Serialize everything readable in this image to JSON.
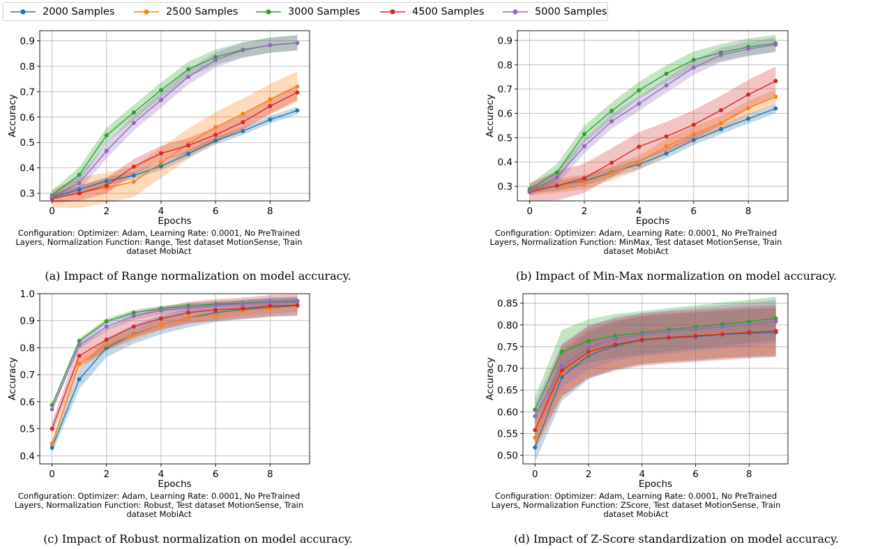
{
  "colors": {
    "2000 Samples": "#1f77b4",
    "2500 Samples": "#ff7f0e",
    "3000 Samples": "#2ca02c",
    "4500 Samples": "#d62728",
    "5000 Samples": "#9467bd"
  },
  "legend": [
    "2000 Samples",
    "2500 Samples",
    "3000 Samples",
    "4500 Samples",
    "5000 Samples"
  ],
  "chart_data": [
    {
      "type": "line",
      "xlabel": "Epochs",
      "ylabel": "Accuracy",
      "xlim": [
        -0.45,
        9.45
      ],
      "ylim": [
        0.27,
        0.94
      ],
      "xticks": [
        "0",
        "2",
        "4",
        "6",
        "8"
      ],
      "yticks": [
        "0.3",
        "0.4",
        "0.5",
        "0.6",
        "0.7",
        "0.8",
        "0.9"
      ],
      "grid": true,
      "config": "Configuration: Optimizer: Adam, Learning Rate: 0.0001, No PreTrained Layers, Normalization Function: Range, Test dataset MotionSense, Train dataset MobiAct",
      "caption": "(a) Impact of Range normalization on model accuracy.",
      "x": [
        0,
        1,
        2,
        3,
        4,
        5,
        6,
        7,
        8,
        9
      ],
      "series": [
        {
          "name": "2000 Samples",
          "values": [
            0.285,
            0.315,
            0.348,
            0.37,
            0.407,
            0.455,
            0.507,
            0.545,
            0.59,
            0.626
          ],
          "band": 0.015
        },
        {
          "name": "2500 Samples",
          "values": [
            0.28,
            0.302,
            0.322,
            0.345,
            0.42,
            0.495,
            0.56,
            0.613,
            0.67,
            0.72
          ],
          "band": 0.06
        },
        {
          "name": "3000 Samples",
          "values": [
            0.292,
            0.373,
            0.528,
            0.618,
            0.706,
            0.788,
            0.836,
            0.865,
            0.883,
            0.892
          ],
          "band": 0.03
        },
        {
          "name": "4500 Samples",
          "values": [
            0.28,
            0.3,
            0.33,
            0.405,
            0.457,
            0.488,
            0.53,
            0.58,
            0.643,
            0.697
          ],
          "band": 0.03
        },
        {
          "name": "5000 Samples",
          "values": [
            0.287,
            0.34,
            0.467,
            0.577,
            0.667,
            0.758,
            0.825,
            0.863,
            0.883,
            0.892
          ],
          "band": 0.03
        }
      ]
    },
    {
      "type": "line",
      "xlabel": "Epochs",
      "ylabel": "Accuracy",
      "xlim": [
        -0.45,
        9.45
      ],
      "ylim": [
        0.24,
        0.94
      ],
      "xticks": [
        "0",
        "2",
        "4",
        "6",
        "8"
      ],
      "yticks": [
        "0.3",
        "0.4",
        "0.5",
        "0.6",
        "0.7",
        "0.8",
        "0.9"
      ],
      "grid": true,
      "config": "Configuration: Optimizer: Adam, Learning Rate: 0.0001, No PreTrained Layers, Normalization Function: MinMax, Test dataset MotionSense, Train dataset MobiAct",
      "caption": "(b) Impact of Min-Max normalization on model accuracy.",
      "x": [
        0,
        1,
        2,
        3,
        4,
        5,
        6,
        7,
        8,
        9
      ],
      "series": [
        {
          "name": "2000 Samples",
          "values": [
            0.283,
            0.302,
            0.322,
            0.358,
            0.39,
            0.435,
            0.49,
            0.535,
            0.578,
            0.62
          ],
          "band": 0.02
        },
        {
          "name": "2500 Samples",
          "values": [
            0.28,
            0.303,
            0.318,
            0.355,
            0.397,
            0.465,
            0.515,
            0.56,
            0.622,
            0.668
          ],
          "band": 0.03
        },
        {
          "name": "3000 Samples",
          "values": [
            0.288,
            0.357,
            0.515,
            0.61,
            0.695,
            0.763,
            0.82,
            0.85,
            0.873,
            0.888
          ],
          "band": 0.035
        },
        {
          "name": "4500 Samples",
          "values": [
            0.277,
            0.302,
            0.333,
            0.397,
            0.463,
            0.505,
            0.553,
            0.613,
            0.677,
            0.733
          ],
          "band": 0.06
        },
        {
          "name": "5000 Samples",
          "values": [
            0.28,
            0.337,
            0.465,
            0.567,
            0.64,
            0.715,
            0.788,
            0.84,
            0.865,
            0.882
          ],
          "band": 0.03
        }
      ]
    },
    {
      "type": "line",
      "xlabel": "Epochs",
      "ylabel": "Accuracy",
      "xlim": [
        -0.45,
        9.45
      ],
      "ylim": [
        0.37,
        1.0
      ],
      "xticks": [
        "0",
        "2",
        "4",
        "6",
        "8"
      ],
      "yticks": [
        "0.4",
        "0.5",
        "0.6",
        "0.7",
        "0.8",
        "0.9",
        "1.0"
      ],
      "grid": true,
      "config": "Configuration: Optimizer: Adam, Learning Rate: 0.0001, No PreTrained Layers, Normalization Function: Robust, Test dataset MotionSense, Train dataset MobiAct",
      "caption": "(c) Impact of Robust normalization on model accuracy.",
      "x": [
        0,
        1,
        2,
        3,
        4,
        5,
        6,
        7,
        8,
        9
      ],
      "series": [
        {
          "name": "2000 Samples",
          "values": [
            0.43,
            0.683,
            0.8,
            0.85,
            0.885,
            0.91,
            0.93,
            0.942,
            0.95,
            0.955
          ],
          "band": 0.035
        },
        {
          "name": "2500 Samples",
          "values": [
            0.445,
            0.74,
            0.81,
            0.848,
            0.885,
            0.91,
            0.922,
            0.938,
            0.945,
            0.953
          ],
          "band": 0.02
        },
        {
          "name": "3000 Samples",
          "values": [
            0.588,
            0.825,
            0.898,
            0.93,
            0.945,
            0.955,
            0.962,
            0.965,
            0.97,
            0.973
          ],
          "band": 0.01
        },
        {
          "name": "4500 Samples",
          "values": [
            0.5,
            0.77,
            0.83,
            0.878,
            0.908,
            0.93,
            0.94,
            0.945,
            0.955,
            0.958
          ],
          "band": 0.04
        },
        {
          "name": "5000 Samples",
          "values": [
            0.572,
            0.81,
            0.878,
            0.918,
            0.938,
            0.948,
            0.958,
            0.963,
            0.968,
            0.97
          ],
          "band": 0.015
        }
      ]
    },
    {
      "type": "line",
      "xlabel": "Epochs",
      "ylabel": "Accuracy",
      "xlim": [
        -0.45,
        9.45
      ],
      "ylim": [
        0.48,
        0.872
      ],
      "xticks": [
        "0",
        "2",
        "4",
        "6",
        "8"
      ],
      "yticks": [
        "0.50",
        "0.55",
        "0.60",
        "0.65",
        "0.70",
        "0.75",
        "0.80",
        "0.85"
      ],
      "grid": true,
      "config": "Configuration: Optimizer: Adam, Learning Rate: 0.0001, No PreTrained Layers, Normalization Function: ZScore, Test dataset MotionSense, Train dataset MobiAct",
      "caption": "(d) Impact of Z-Score standardization on model accuracy.",
      "x": [
        0,
        1,
        2,
        3,
        4,
        5,
        6,
        7,
        8,
        9
      ],
      "series": [
        {
          "name": "2000 Samples",
          "values": [
            0.518,
            0.68,
            0.73,
            0.752,
            0.765,
            0.77,
            0.773,
            0.778,
            0.781,
            0.783
          ],
          "band": 0.055
        },
        {
          "name": "2500 Samples",
          "values": [
            0.54,
            0.69,
            0.735,
            0.755,
            0.766,
            0.771,
            0.776,
            0.78,
            0.783,
            0.786
          ],
          "band": 0.055
        },
        {
          "name": "3000 Samples",
          "values": [
            0.605,
            0.738,
            0.763,
            0.775,
            0.782,
            0.789,
            0.795,
            0.802,
            0.808,
            0.815
          ],
          "band": 0.05
        },
        {
          "name": "4500 Samples",
          "values": [
            0.558,
            0.695,
            0.738,
            0.755,
            0.766,
            0.771,
            0.775,
            0.779,
            0.783,
            0.786
          ],
          "band": 0.06
        },
        {
          "name": "5000 Samples",
          "values": [
            0.59,
            0.705,
            0.748,
            0.768,
            0.778,
            0.784,
            0.79,
            0.796,
            0.801,
            0.808
          ],
          "band": 0.05
        }
      ]
    }
  ]
}
